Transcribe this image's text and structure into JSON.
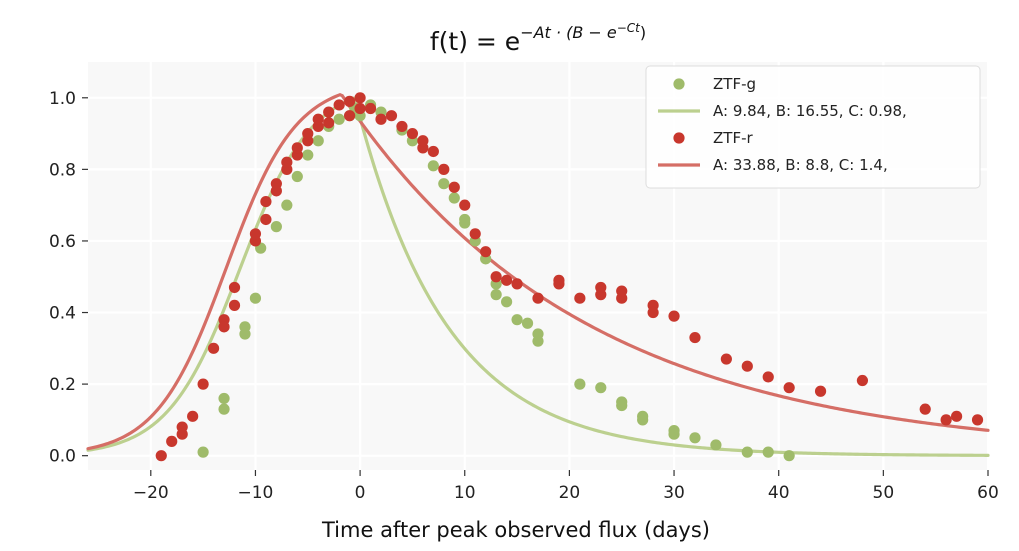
{
  "chart_data": {
    "type": "scatter",
    "title": {
      "prefix": "f(t) = e",
      "exponent": "−At · (B − e",
      "inner_exponent": "−Ct",
      "suffix": ")"
    },
    "xlabel": "Time after peak observed flux (days)",
    "ylabel": "",
    "xlim": [
      -26,
      60
    ],
    "ylim": [
      -0.04,
      1.1
    ],
    "xticks": [
      -20,
      -10,
      0,
      10,
      20,
      30,
      40,
      50,
      60
    ],
    "xtick_labels": [
      "−20",
      "−10",
      "0",
      "10",
      "20",
      "30",
      "40",
      "50",
      "60"
    ],
    "yticks": [
      0.0,
      0.2,
      0.4,
      0.6,
      0.8,
      1.0
    ],
    "ytick_labels": [
      "0.0",
      "0.2",
      "0.4",
      "0.6",
      "0.8",
      "1.0"
    ],
    "grid": true,
    "legend_position": "top-right",
    "series": [
      {
        "name": "ZTF-g",
        "kind": "scatter",
        "color": "#9fbb6a",
        "points": [
          [
            -15,
            0.01
          ],
          [
            -13,
            0.13
          ],
          [
            -13,
            0.16
          ],
          [
            -11,
            0.34
          ],
          [
            -11,
            0.36
          ],
          [
            -10,
            0.44
          ],
          [
            -9.5,
            0.58
          ],
          [
            -8,
            0.64
          ],
          [
            -7,
            0.7
          ],
          [
            -6,
            0.78
          ],
          [
            -5,
            0.84
          ],
          [
            -4,
            0.88
          ],
          [
            -3,
            0.92
          ],
          [
            -2,
            0.94
          ],
          [
            -1,
            0.95
          ],
          [
            0,
            0.95
          ],
          [
            -0.5,
            0.97
          ],
          [
            1,
            0.98
          ],
          [
            2,
            0.96
          ],
          [
            4,
            0.91
          ],
          [
            5,
            0.88
          ],
          [
            7,
            0.81
          ],
          [
            8,
            0.76
          ],
          [
            9,
            0.72
          ],
          [
            10,
            0.66
          ],
          [
            10,
            0.65
          ],
          [
            11,
            0.6
          ],
          [
            12,
            0.55
          ],
          [
            13,
            0.48
          ],
          [
            13,
            0.45
          ],
          [
            14,
            0.43
          ],
          [
            15,
            0.38
          ],
          [
            16,
            0.37
          ],
          [
            17,
            0.34
          ],
          [
            17,
            0.32
          ],
          [
            21,
            0.2
          ],
          [
            23,
            0.19
          ],
          [
            25,
            0.14
          ],
          [
            25,
            0.15
          ],
          [
            27,
            0.1
          ],
          [
            27,
            0.11
          ],
          [
            30,
            0.07
          ],
          [
            30,
            0.06
          ],
          [
            32,
            0.05
          ],
          [
            34,
            0.03
          ],
          [
            37,
            0.01
          ],
          [
            39,
            0.01
          ],
          [
            41,
            0.0
          ]
        ]
      },
      {
        "name": "A: 9.84, B: 16.55, C: 0.98,",
        "kind": "line",
        "color": "#bcd08f",
        "A": 9.84,
        "B": 16.55,
        "C": 0.98,
        "x0": -26,
        "x1": 60
      },
      {
        "name": "ZTF-r",
        "kind": "scatter",
        "color": "#c8372d",
        "points": [
          [
            -19,
            0.0
          ],
          [
            -18,
            0.04
          ],
          [
            -17,
            0.08
          ],
          [
            -17,
            0.06
          ],
          [
            -16,
            0.11
          ],
          [
            -15,
            0.2
          ],
          [
            -14,
            0.3
          ],
          [
            -13,
            0.38
          ],
          [
            -13,
            0.36
          ],
          [
            -12,
            0.42
          ],
          [
            -12,
            0.47
          ],
          [
            -10,
            0.6
          ],
          [
            -10,
            0.62
          ],
          [
            -9,
            0.66
          ],
          [
            -9,
            0.71
          ],
          [
            -8,
            0.76
          ],
          [
            -8,
            0.74
          ],
          [
            -7,
            0.8
          ],
          [
            -7,
            0.82
          ],
          [
            -6,
            0.84
          ],
          [
            -6,
            0.86
          ],
          [
            -5,
            0.88
          ],
          [
            -5,
            0.9
          ],
          [
            -4,
            0.92
          ],
          [
            -4,
            0.94
          ],
          [
            -3,
            0.93
          ],
          [
            -3,
            0.96
          ],
          [
            -2,
            0.98
          ],
          [
            -1,
            0.95
          ],
          [
            -1,
            0.99
          ],
          [
            0,
            1.0
          ],
          [
            0,
            0.97
          ],
          [
            1,
            0.97
          ],
          [
            2,
            0.94
          ],
          [
            3,
            0.95
          ],
          [
            4,
            0.92
          ],
          [
            5,
            0.9
          ],
          [
            6,
            0.86
          ],
          [
            6,
            0.88
          ],
          [
            7,
            0.85
          ],
          [
            8,
            0.8
          ],
          [
            9,
            0.75
          ],
          [
            10,
            0.7
          ],
          [
            11,
            0.62
          ],
          [
            12,
            0.57
          ],
          [
            13,
            0.5
          ],
          [
            14,
            0.49
          ],
          [
            15,
            0.48
          ],
          [
            17,
            0.44
          ],
          [
            19,
            0.48
          ],
          [
            19,
            0.49
          ],
          [
            21,
            0.44
          ],
          [
            23,
            0.45
          ],
          [
            23,
            0.47
          ],
          [
            25,
            0.44
          ],
          [
            25,
            0.46
          ],
          [
            28,
            0.42
          ],
          [
            28,
            0.4
          ],
          [
            30,
            0.39
          ],
          [
            32,
            0.33
          ],
          [
            35,
            0.27
          ],
          [
            37,
            0.25
          ],
          [
            39,
            0.22
          ],
          [
            41,
            0.19
          ],
          [
            44,
            0.18
          ],
          [
            48,
            0.21
          ],
          [
            54,
            0.13
          ],
          [
            56,
            0.1
          ],
          [
            57,
            0.11
          ],
          [
            59,
            0.1
          ]
        ]
      },
      {
        "name": "A: 33.88, B: 8.8, C: 1.4,",
        "kind": "line",
        "color": "#d56e66",
        "A": 33.88,
        "B": 8.8,
        "C": 1.4,
        "x0": -26,
        "x1": 60
      }
    ]
  }
}
